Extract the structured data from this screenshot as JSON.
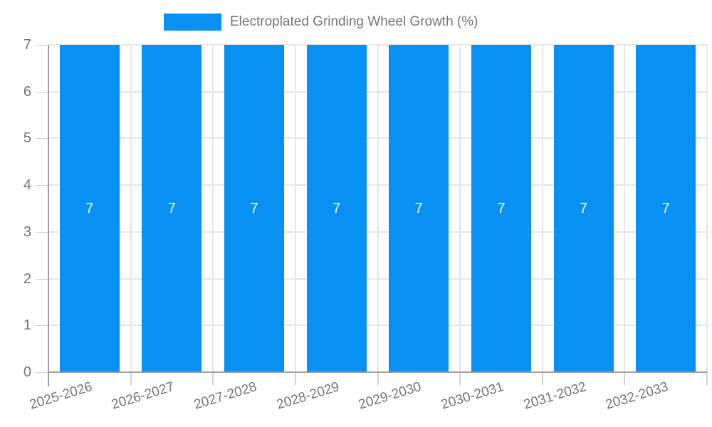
{
  "legend": {
    "label": "Electroplated Grinding Wheel Growth (%)"
  },
  "colors": {
    "bar": "#0890F2",
    "bar_label": "#ffffff",
    "text": "#757575",
    "gridline": "#e6e6e6",
    "axis": "#9e9e9e",
    "minor_tick": "#d2d2d2",
    "background": "#ffffff"
  },
  "chart_data": {
    "type": "bar",
    "title": "Electroplated Grinding Wheel Growth (%)",
    "legend_entries": [
      "Electroplated Grinding Wheel Growth (%)"
    ],
    "legend_position": "top",
    "categories": [
      "2025-2026",
      "2026-2027",
      "2027-2028",
      "2028-2029",
      "2029-2030",
      "2030-2031",
      "2031-2032",
      "2032-2033"
    ],
    "values": [
      7,
      7,
      7,
      7,
      7,
      7,
      7,
      7
    ],
    "bar_labels": [
      "7",
      "7",
      "7",
      "7",
      "7",
      "7",
      "7",
      "7"
    ],
    "xlabel": "",
    "ylabel": "",
    "ylim": [
      0,
      7
    ],
    "yticks": [
      0,
      1,
      2,
      3,
      4,
      5,
      6,
      7
    ],
    "grid": true
  }
}
